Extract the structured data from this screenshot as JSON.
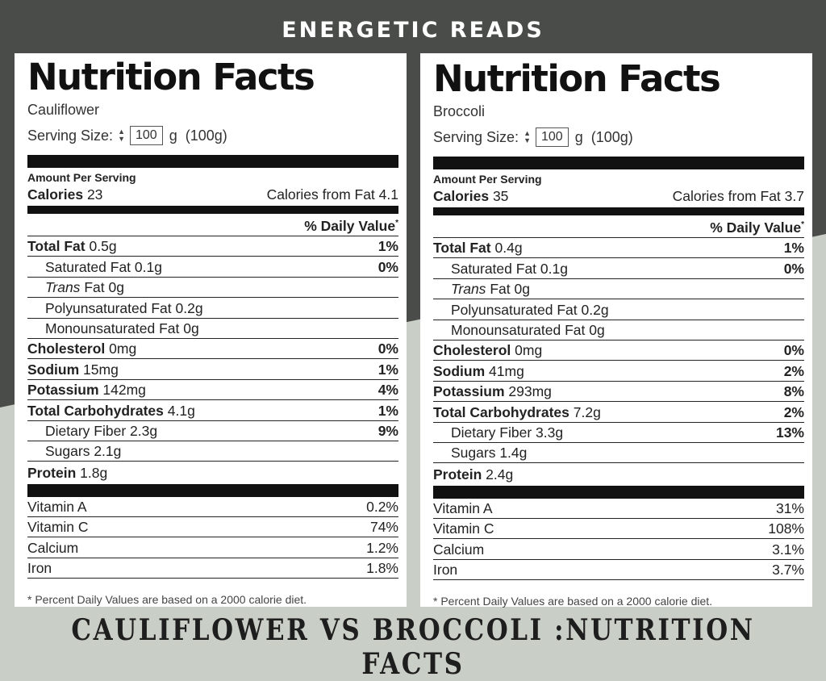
{
  "brand": "ENERGETIC READS",
  "footer_title": "CAULIFLOWER VS BROCCOLI :NUTRITION FACTS",
  "labels": {
    "heading": "Nutrition Facts",
    "serving_size": "Serving Size:",
    "serving_unit": "g",
    "amount_per_serving": "Amount Per Serving",
    "calories": "Calories",
    "calories_from_fat": "Calories from Fat",
    "daily_value": "% Daily Value",
    "daily_value_mark": "*",
    "total_fat": "Total Fat",
    "saturated_fat": "Saturated Fat",
    "trans": "Trans",
    "fat": "Fat",
    "polyunsaturated_fat": "Polyunsaturated Fat",
    "monounsaturated_fat": "Monounsaturated Fat",
    "cholesterol": "Cholesterol",
    "sodium": "Sodium",
    "potassium": "Potassium",
    "total_carbohydrates": "Total Carbohydrates",
    "dietary_fiber": "Dietary Fiber",
    "sugars": "Sugars",
    "protein": "Protein",
    "vitamin_a": "Vitamin A",
    "vitamin_c": "Vitamin C",
    "calcium": "Calcium",
    "iron": "Iron",
    "footnote": "* Percent Daily Values are based on a 2000 calorie diet."
  },
  "panels": [
    {
      "food": "Cauliflower",
      "serving_value": "100",
      "serving_grams": "(100g)",
      "calories": "23",
      "calories_from_fat": "4.1",
      "total_fat": "0.5g",
      "total_fat_pct": "1%",
      "saturated_fat": "0.1g",
      "saturated_fat_pct": "0%",
      "trans_fat": "0g",
      "polyunsaturated_fat": "0.2g",
      "monounsaturated_fat": "0g",
      "cholesterol": "0mg",
      "cholesterol_pct": "0%",
      "sodium": "15mg",
      "sodium_pct": "1%",
      "potassium": "142mg",
      "potassium_pct": "4%",
      "total_carbohydrates": "4.1g",
      "total_carbohydrates_pct": "1%",
      "dietary_fiber": "2.3g",
      "dietary_fiber_pct": "9%",
      "sugars": "2.1g",
      "protein": "1.8g",
      "vitamin_a": "0.2%",
      "vitamin_c": "74%",
      "calcium": "1.2%",
      "iron": "1.8%"
    },
    {
      "food": "Broccoli",
      "serving_value": "100",
      "serving_grams": "(100g)",
      "calories": "35",
      "calories_from_fat": "3.7",
      "total_fat": "0.4g",
      "total_fat_pct": "1%",
      "saturated_fat": "0.1g",
      "saturated_fat_pct": "0%",
      "trans_fat": "0g",
      "polyunsaturated_fat": "0.2g",
      "monounsaturated_fat": "0g",
      "cholesterol": "0mg",
      "cholesterol_pct": "0%",
      "sodium": "41mg",
      "sodium_pct": "2%",
      "potassium": "293mg",
      "potassium_pct": "8%",
      "total_carbohydrates": "7.2g",
      "total_carbohydrates_pct": "2%",
      "dietary_fiber": "3.3g",
      "dietary_fiber_pct": "13%",
      "sugars": "1.4g",
      "protein": "2.4g",
      "vitamin_a": "31%",
      "vitamin_c": "108%",
      "calcium": "3.1%",
      "iron": "3.7%"
    }
  ],
  "colors": {
    "dark_bg": "#4a4c4a",
    "light_bg": "#c9cfc7",
    "panel": "#ffffff",
    "ink": "#111111"
  }
}
